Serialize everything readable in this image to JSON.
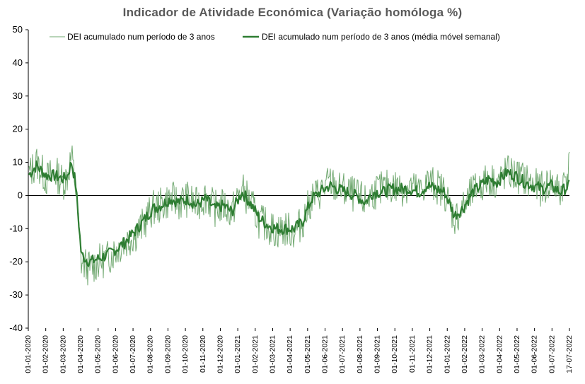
{
  "chart_data": {
    "type": "line",
    "title": "Indicador de Atividade Económica (Variação homóloga %)",
    "xlabel": "",
    "ylabel": "",
    "ylim": [
      -40,
      50
    ],
    "yticks": [
      50,
      40,
      30,
      20,
      10,
      0,
      -10,
      -20,
      -30,
      -40
    ],
    "x_tick_labels": [
      "01-01-2020",
      "01-02-2020",
      "01-03-2020",
      "01-04-2020",
      "01-05-2020",
      "01-06-2020",
      "01-07-2020",
      "01-08-2020",
      "01-09-2020",
      "01-10-2020",
      "01-11-2020",
      "01-12-2020",
      "01-01-2021",
      "01-02-2021",
      "01-03-2021",
      "01-04-2021",
      "01-05-2021",
      "01-06-2021",
      "01-07-2021",
      "01-08-2021",
      "01-09-2021",
      "01-10-2021",
      "01-11-2021",
      "01-12-2021",
      "01-01-2022",
      "01-02-2022",
      "01-03-2022",
      "01-04-2022",
      "01-05-2022",
      "01-06-2022",
      "01-07-2022",
      "17-07-2022"
    ],
    "grid": false,
    "legend_position": "top",
    "colors": {
      "daily": "#70a870",
      "weekly": "#2e7d32",
      "axis": "#000000"
    },
    "series": [
      {
        "name": "DEI acumulado num período de 3 anos",
        "style": "thin",
        "x": [
          "2020-01-01",
          "2020-01-15",
          "2020-02-01",
          "2020-02-15",
          "2020-03-01",
          "2020-03-08",
          "2020-03-15",
          "2020-03-22",
          "2020-04-01",
          "2020-04-15",
          "2020-05-01",
          "2020-05-15",
          "2020-06-01",
          "2020-06-15",
          "2020-07-01",
          "2020-07-15",
          "2020-08-01",
          "2020-08-15",
          "2020-09-01",
          "2020-09-15",
          "2020-10-01",
          "2020-10-15",
          "2020-11-01",
          "2020-11-15",
          "2020-12-01",
          "2020-12-15",
          "2021-01-01",
          "2021-01-15",
          "2021-02-01",
          "2021-02-15",
          "2021-03-01",
          "2021-03-15",
          "2021-04-01",
          "2021-04-15",
          "2021-05-01",
          "2021-05-15",
          "2021-06-01",
          "2021-06-15",
          "2021-07-01",
          "2021-07-15",
          "2021-08-01",
          "2021-08-15",
          "2021-09-01",
          "2021-09-15",
          "2021-10-01",
          "2021-10-15",
          "2021-11-01",
          "2021-11-15",
          "2021-12-01",
          "2021-12-15",
          "2022-01-01",
          "2022-01-15",
          "2022-02-01",
          "2022-02-15",
          "2022-03-01",
          "2022-03-15",
          "2022-04-01",
          "2022-04-15",
          "2022-05-01",
          "2022-05-15",
          "2022-06-01",
          "2022-06-15",
          "2022-07-01",
          "2022-07-17"
        ],
        "values": [
          6,
          10,
          5,
          7,
          4,
          6,
          12,
          3,
          -20,
          -22,
          -20,
          -19,
          -16,
          -14,
          -12,
          -9,
          -4,
          -3,
          -1,
          -2,
          -1,
          -3,
          0,
          -4,
          -3,
          -5,
          2,
          -2,
          -8,
          -9,
          -11,
          -10,
          -11,
          -8,
          -1,
          1,
          4,
          2,
          1,
          0,
          -2,
          1,
          2,
          3,
          2,
          3,
          1,
          4,
          3,
          1,
          -7,
          -4,
          1,
          3,
          5,
          4,
          7,
          6,
          5,
          3,
          2,
          4,
          1,
          9
        ]
      },
      {
        "name": "DEI acumulado num período de 3 anos (média móvel semanal)",
        "style": "thick",
        "x": [
          "2020-01-01",
          "2020-01-15",
          "2020-02-01",
          "2020-02-15",
          "2020-03-01",
          "2020-03-08",
          "2020-03-15",
          "2020-03-22",
          "2020-04-01",
          "2020-04-15",
          "2020-05-01",
          "2020-05-15",
          "2020-06-01",
          "2020-06-15",
          "2020-07-01",
          "2020-07-15",
          "2020-08-01",
          "2020-08-15",
          "2020-09-01",
          "2020-09-15",
          "2020-10-01",
          "2020-10-15",
          "2020-11-01",
          "2020-11-15",
          "2020-12-01",
          "2020-12-15",
          "2021-01-01",
          "2021-01-15",
          "2021-02-01",
          "2021-02-15",
          "2021-03-01",
          "2021-03-15",
          "2021-04-01",
          "2021-04-15",
          "2021-05-01",
          "2021-05-15",
          "2021-06-01",
          "2021-06-15",
          "2021-07-01",
          "2021-07-15",
          "2021-08-01",
          "2021-08-15",
          "2021-09-01",
          "2021-09-15",
          "2021-10-01",
          "2021-10-15",
          "2021-11-01",
          "2021-11-15",
          "2021-12-01",
          "2021-12-15",
          "2022-01-01",
          "2022-01-15",
          "2022-02-01",
          "2022-02-15",
          "2022-03-01",
          "2022-03-15",
          "2022-04-01",
          "2022-04-15",
          "2022-05-01",
          "2022-05-15",
          "2022-06-01",
          "2022-06-15",
          "2022-07-01",
          "2022-07-17"
        ],
        "values": [
          6,
          9,
          6,
          6,
          5,
          6,
          10,
          4,
          -18,
          -20,
          -19,
          -18,
          -16,
          -14,
          -11,
          -8,
          -4,
          -3,
          -1,
          -2,
          -1,
          -3,
          -1,
          -4,
          -3,
          -5,
          1,
          -2,
          -7,
          -9,
          -10,
          -10,
          -10,
          -8,
          -1,
          1,
          3,
          2,
          1,
          0,
          -2,
          1,
          1,
          2,
          2,
          2,
          1,
          3,
          2,
          1,
          -6,
          -4,
          1,
          3,
          5,
          4,
          7,
          6,
          4,
          3,
          2,
          3,
          1,
          3
        ]
      }
    ]
  }
}
